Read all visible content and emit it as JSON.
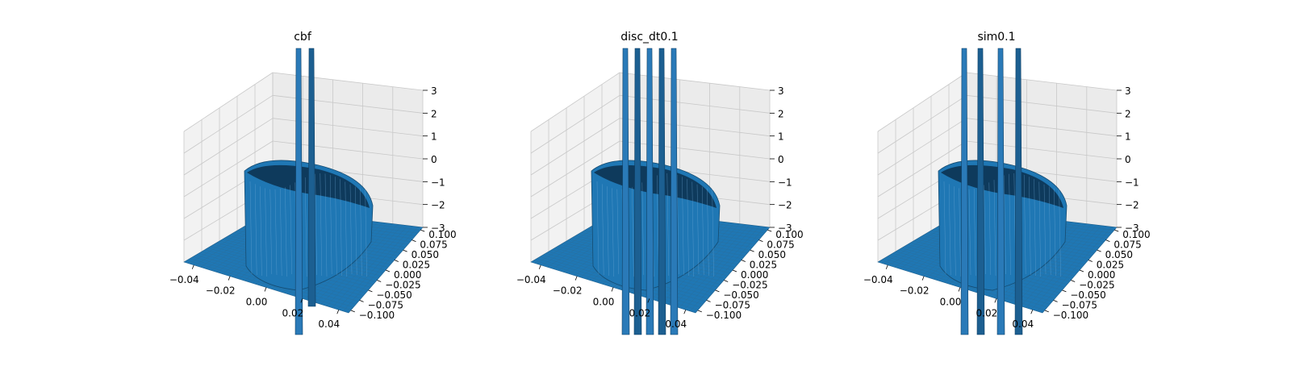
{
  "chart_data": [
    {
      "type": "surface3d",
      "title": "cbf",
      "x_ticks": [
        "−0.04",
        "−0.02",
        "0.00",
        "0.02",
        "0.04"
      ],
      "y_ticks": [
        "−0.100",
        "−0.075",
        "−0.050",
        "−0.025",
        "0.000",
        "0.025",
        "0.050",
        "0.075",
        "0.100"
      ],
      "z_ticks": [
        "−3",
        "−2",
        "−1",
        "0",
        "1",
        "2",
        "3"
      ],
      "xlim": [
        -0.05,
        0.05
      ],
      "ylim": [
        -0.1,
        0.1
      ],
      "zlim": [
        -3,
        3
      ],
      "surface_color": "#1f77b4"
    },
    {
      "type": "surface3d",
      "title": "disc_dt0.1",
      "x_ticks": [
        "−0.04",
        "−0.02",
        "0.00",
        "0.02",
        "0.04"
      ],
      "y_ticks": [
        "−0.100",
        "−0.075",
        "−0.050",
        "−0.025",
        "0.000",
        "0.025",
        "0.050",
        "0.075",
        "0.100"
      ],
      "z_ticks": [
        "−3",
        "−2",
        "−1",
        "0",
        "1",
        "2",
        "3"
      ],
      "xlim": [
        -0.05,
        0.05
      ],
      "ylim": [
        -0.1,
        0.1
      ],
      "zlim": [
        -3,
        3
      ],
      "surface_color": "#1f77b4"
    },
    {
      "type": "surface3d",
      "title": "sim0.1",
      "x_ticks": [
        "−0.04",
        "−0.02",
        "0.00",
        "0.02",
        "0.04"
      ],
      "y_ticks": [
        "−0.100",
        "−0.075",
        "−0.050",
        "−0.025",
        "0.000",
        "0.025",
        "0.050",
        "0.075",
        "0.100"
      ],
      "z_ticks": [
        "−3",
        "−2",
        "−1",
        "0",
        "1",
        "2",
        "3"
      ],
      "xlim": [
        -0.05,
        0.05
      ],
      "ylim": [
        -0.1,
        0.1
      ],
      "zlim": [
        -3,
        3
      ],
      "surface_color": "#1f77b4"
    }
  ]
}
